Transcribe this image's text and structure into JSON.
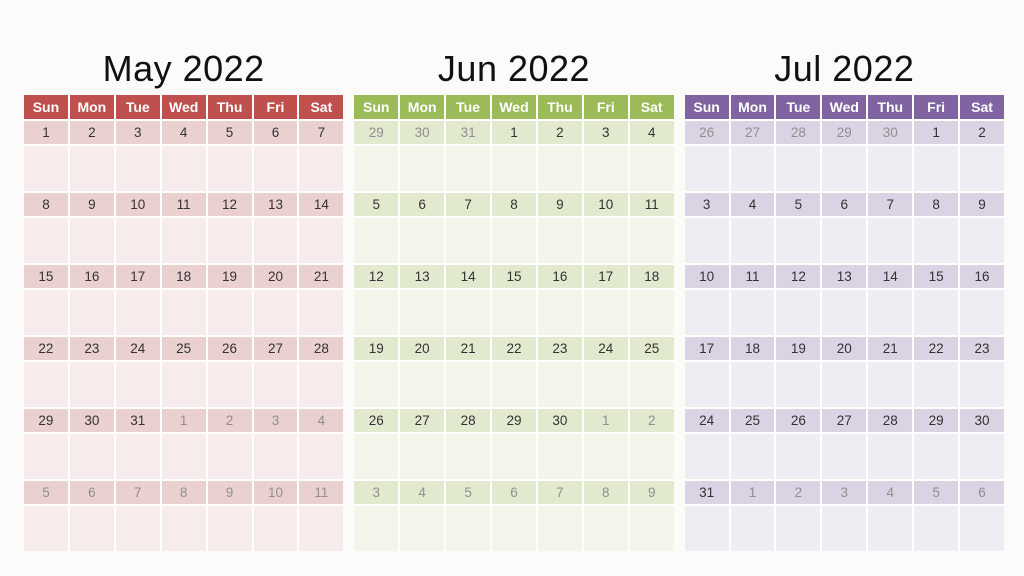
{
  "page": {
    "background": "#FCFBFA",
    "gridline": "#FFFFFF"
  },
  "text_colors": {
    "title": "#111111",
    "weekday": "#FFFFFF",
    "date": "#333333",
    "muted": "#8F8F8F"
  },
  "weekday_names": [
    "Sun",
    "Mon",
    "Tue",
    "Wed",
    "Thu",
    "Fri",
    "Sat"
  ],
  "muted_marker": "*",
  "calendars": [
    {
      "id": "may-2022",
      "title": "May 2022",
      "colors": {
        "header": "#C0504D",
        "date_row": "#EAD0CF",
        "empty_row": "#F7ECEB"
      },
      "weeks": [
        [
          "1",
          "2",
          "3",
          "4",
          "5",
          "6",
          "7"
        ],
        [
          "8",
          "9",
          "10",
          "11",
          "12",
          "13",
          "14"
        ],
        [
          "15",
          "16",
          "17",
          "18",
          "19",
          "20",
          "21"
        ],
        [
          "22",
          "23",
          "24",
          "25",
          "26",
          "27",
          "28"
        ],
        [
          "29",
          "30",
          "31",
          "1*",
          "2*",
          "3*",
          "4*"
        ],
        [
          "5*",
          "6*",
          "7*",
          "8*",
          "9*",
          "10*",
          "11*"
        ]
      ]
    },
    {
      "id": "jun-2022",
      "title": "Jun 2022",
      "colors": {
        "header": "#9BBB59",
        "date_row": "#E1EACE",
        "empty_row": "#F2F5E9"
      },
      "weeks": [
        [
          "29*",
          "30*",
          "31*",
          "1",
          "2",
          "3",
          "4"
        ],
        [
          "5",
          "6",
          "7",
          "8",
          "9",
          "10",
          "11"
        ],
        [
          "12",
          "13",
          "14",
          "15",
          "16",
          "17",
          "18"
        ],
        [
          "19",
          "20",
          "21",
          "22",
          "23",
          "24",
          "25"
        ],
        [
          "26",
          "27",
          "28",
          "29",
          "30",
          "1*",
          "2*"
        ],
        [
          "3*",
          "4*",
          "5*",
          "6*",
          "7*",
          "8*",
          "9*"
        ]
      ]
    },
    {
      "id": "jul-2022",
      "title": "Jul 2022",
      "colors": {
        "header": "#8064A2",
        "date_row": "#D9D3E3",
        "empty_row": "#EFEDF4"
      },
      "weeks": [
        [
          "26*",
          "27*",
          "28*",
          "29*",
          "30*",
          "1",
          "2"
        ],
        [
          "3",
          "4",
          "5",
          "6",
          "7",
          "8",
          "9"
        ],
        [
          "10",
          "11",
          "12",
          "13",
          "14",
          "15",
          "16"
        ],
        [
          "17",
          "18",
          "19",
          "20",
          "21",
          "22",
          "23"
        ],
        [
          "24",
          "25",
          "26",
          "27",
          "28",
          "29",
          "30"
        ],
        [
          "31",
          "1*",
          "2*",
          "3*",
          "4*",
          "5*",
          "6*"
        ]
      ]
    }
  ]
}
